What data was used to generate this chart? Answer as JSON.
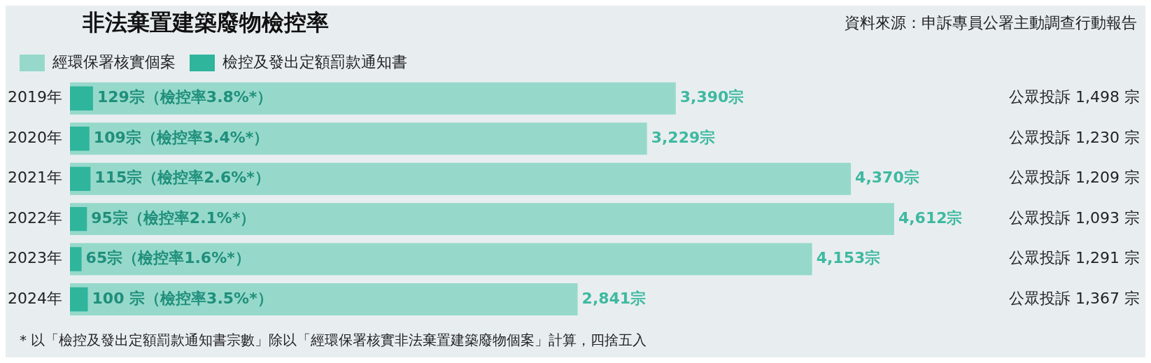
{
  "chart_data": {
    "type": "bar",
    "orientation": "horizontal",
    "title": "非法棄置建築廢物檢控率",
    "categories": [
      "2019年",
      "2020年",
      "2021年",
      "2022年",
      "2023年",
      "2024年"
    ],
    "series": [
      {
        "name": "經環保署核實個案",
        "color": "#96d9cb",
        "values": [
          3390,
          3229,
          4370,
          4612,
          4153,
          2841
        ],
        "value_labels": [
          "3,390宗",
          "3,229宗",
          "4,370宗",
          "4,612宗",
          "4,153宗",
          "2,841宗"
        ]
      },
      {
        "name": "檢控及發出定額罰款通知書",
        "color": "#2fb59c",
        "values": [
          129,
          109,
          115,
          95,
          65,
          100
        ],
        "value_labels": [
          "129宗（檢控率3.8%*）",
          "109宗（檢控率3.4%*）",
          "115宗（檢控率2.6%*）",
          "95宗（檢控率2.1%*）",
          "65宗（檢控率1.6%*）",
          "100 宗（檢控率3.5%*）"
        ]
      }
    ],
    "legend": "top left",
    "grid": false,
    "annotations": [
      "資料來源：申訴專員公署主動調查行動報告",
      "公眾投訴 1,498 宗",
      "公眾投訴 1,230 宗",
      "公眾投訴 1,209 宗",
      "公眾投訴 1,093 宗",
      "公眾投訴 1,291 宗",
      "公眾投訴 1,367 宗",
      "* 以「檢控及發出定額罰款通知書宗數」除以「經環保署核實非法棄置建築廢物個案」計算，四捨五入"
    ]
  }
}
